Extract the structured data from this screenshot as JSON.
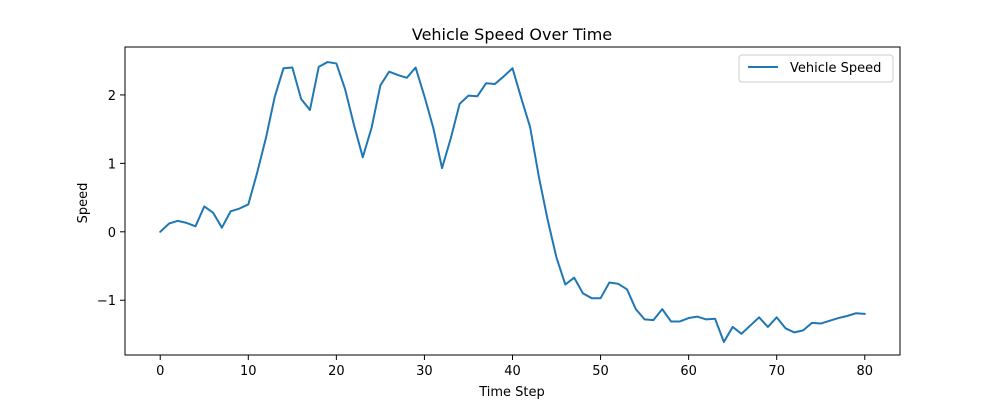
{
  "chart_data": {
    "type": "line",
    "title": "Vehicle Speed Over Time",
    "xlabel": "Time Step",
    "ylabel": "Speed",
    "xlim": [
      -4,
      84
    ],
    "ylim": [
      -1.8,
      2.7
    ],
    "xticks": [
      0,
      10,
      20,
      30,
      40,
      50,
      60,
      70,
      80
    ],
    "xtick_labels": [
      "0",
      "10",
      "20",
      "30",
      "40",
      "50",
      "60",
      "70",
      "80"
    ],
    "yticks": [
      -1,
      0,
      1,
      2
    ],
    "ytick_labels": [
      "−1",
      "0",
      "1",
      "2"
    ],
    "grid": false,
    "legend": "top-right",
    "series": [
      {
        "name": "Vehicle Speed",
        "color": "#1f77b4",
        "x": [
          0,
          1,
          2,
          3,
          4,
          5,
          6,
          7,
          8,
          9,
          10,
          11,
          12,
          13,
          14,
          15,
          16,
          17,
          18,
          19,
          20,
          21,
          22,
          23,
          24,
          25,
          26,
          27,
          28,
          29,
          30,
          31,
          32,
          33,
          34,
          35,
          36,
          37,
          38,
          39,
          40,
          41,
          42,
          43,
          44,
          45,
          46,
          47,
          48,
          49,
          50,
          51,
          52,
          53,
          54,
          55,
          56,
          57,
          58,
          59,
          60,
          61,
          62,
          63,
          64,
          65,
          66,
          67,
          68,
          69,
          70,
          71,
          72,
          73,
          74,
          75,
          76,
          77,
          78,
          79,
          80
        ],
        "values": [
          0.0,
          0.12,
          0.16,
          0.13,
          0.08,
          0.37,
          0.28,
          0.06,
          0.3,
          0.34,
          0.4,
          0.86,
          1.37,
          1.97,
          2.39,
          2.4,
          1.94,
          1.78,
          2.41,
          2.48,
          2.46,
          2.08,
          1.56,
          1.09,
          1.52,
          2.14,
          2.34,
          2.29,
          2.25,
          2.4,
          1.98,
          1.52,
          0.93,
          1.37,
          1.87,
          1.99,
          1.98,
          2.17,
          2.16,
          2.27,
          2.39,
          1.95,
          1.53,
          0.8,
          0.17,
          -0.38,
          -0.77,
          -0.67,
          -0.9,
          -0.97,
          -0.97,
          -0.74,
          -0.76,
          -0.84,
          -1.13,
          -1.28,
          -1.29,
          -1.13,
          -1.31,
          -1.31,
          -1.26,
          -1.24,
          -1.28,
          -1.27,
          -1.61,
          -1.39,
          -1.49,
          -1.37,
          -1.25,
          -1.39,
          -1.25,
          -1.41,
          -1.47,
          -1.44,
          -1.33,
          -1.34,
          -1.3,
          -1.26,
          -1.23,
          -1.19,
          -1.2
        ]
      }
    ]
  }
}
